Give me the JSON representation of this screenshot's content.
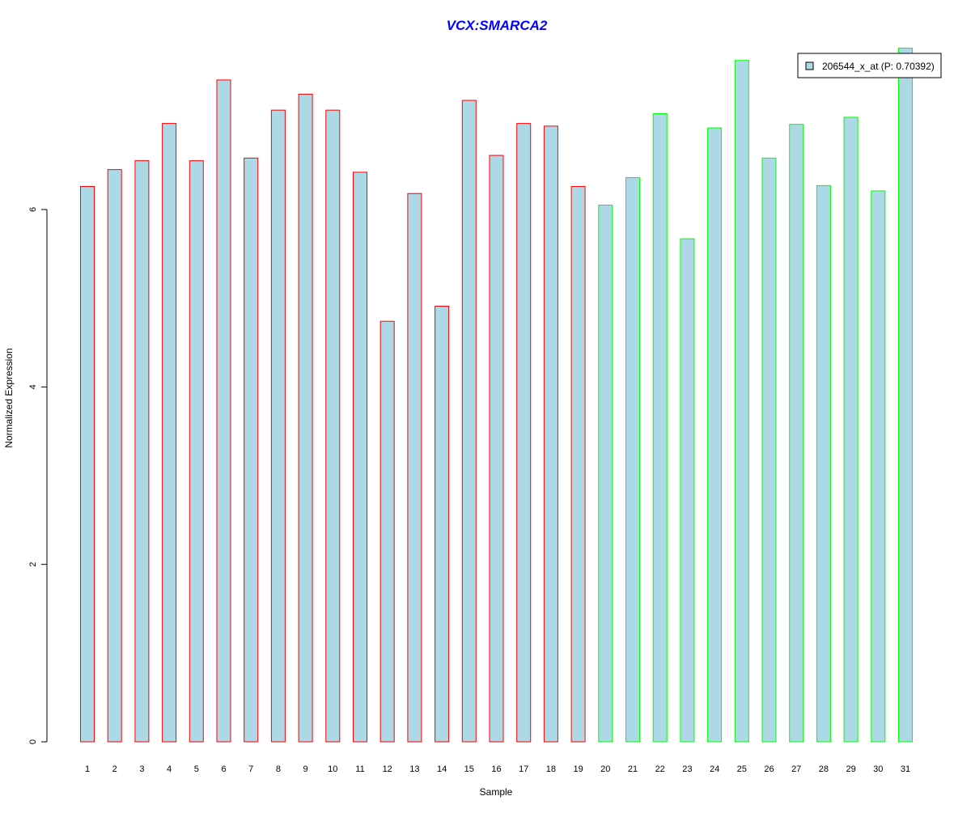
{
  "chart_data": {
    "type": "bar",
    "title": "VCX:SMARCA2",
    "xlabel": "Sample",
    "ylabel": "Normalized Expression",
    "ylim": [
      0,
      7.85
    ],
    "yticks": [
      0,
      2,
      4,
      6
    ],
    "categories": [
      "1",
      "2",
      "3",
      "4",
      "5",
      "6",
      "7",
      "8",
      "9",
      "10",
      "11",
      "12",
      "13",
      "14",
      "15",
      "16",
      "17",
      "18",
      "19",
      "20",
      "21",
      "22",
      "23",
      "24",
      "25",
      "26",
      "27",
      "28",
      "29",
      "30",
      "31"
    ],
    "series": [
      {
        "name": "206544_x_at (P: 0.70392)",
        "values": [
          6.26,
          6.45,
          6.55,
          6.97,
          6.55,
          7.46,
          6.58,
          7.12,
          7.3,
          7.12,
          6.42,
          4.74,
          6.18,
          4.91,
          7.23,
          6.61,
          6.97,
          6.94,
          6.26,
          6.05,
          6.36,
          7.08,
          5.67,
          6.92,
          7.68,
          6.58,
          6.96,
          6.27,
          7.04,
          6.21,
          7.82
        ],
        "groups": [
          "red",
          "red",
          "red",
          "red",
          "red",
          "red",
          "red",
          "red",
          "red",
          "red",
          "red",
          "red",
          "red",
          "red",
          "red",
          "red",
          "red",
          "red",
          "red",
          "green",
          "green",
          "green",
          "green",
          "green",
          "green",
          "green",
          "green",
          "green",
          "green",
          "green",
          "green"
        ]
      }
    ],
    "legend": {
      "label": "206544_x_at (P: 0.70392)",
      "placement": "top-right"
    },
    "colors": {
      "fill": "#add8e6",
      "red": "#ff0000",
      "green": "#00ff00",
      "title": "#0000ff"
    }
  }
}
